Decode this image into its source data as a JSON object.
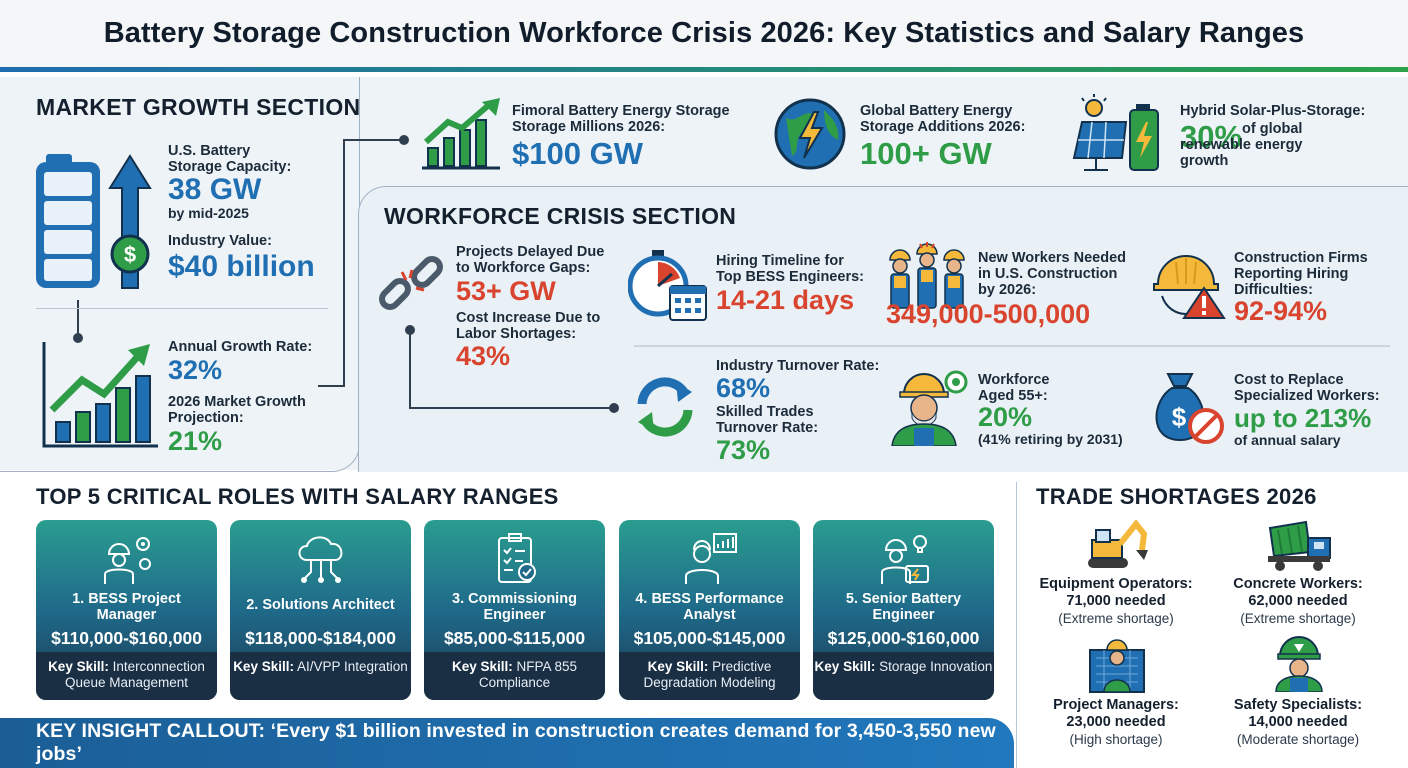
{
  "title": "Battery Storage Construction Workforce Crisis 2026: Key Statistics and Salary Ranges",
  "market": {
    "heading": "MARKET GROWTH SECTION",
    "capacity_label": "U.S. Battery Storage Capacity:",
    "capacity_value": "38 GW",
    "capacity_note": "by mid-2025",
    "value_label": "Industry Value:",
    "value_value": "$40 billion",
    "growth_label": "Annual Growth Rate:",
    "growth_value": "32%",
    "projection_label": "2026 Market Growth Projection:",
    "projection_value": "21%"
  },
  "top_stats": [
    {
      "label": "Fimoral Battery Energy Storage Storage Millions 2026:",
      "value": "$100 GW"
    },
    {
      "label": "Global Battery Energy Storage Additions 2026:",
      "value": "100+ GW"
    },
    {
      "label": "Hybrid Solar-Plus-Storage:",
      "value": "30%",
      "suffix": "of global renewable energy growth"
    }
  ],
  "crisis": {
    "heading": "WORKFORCE CRISIS SECTION",
    "delayed_label": "Projects Delayed Due to Workforce Gaps:",
    "delayed_value": "53+ GW",
    "cost_label": "Cost Increase Due to Labor Shortages:",
    "cost_value": "43%",
    "hiring_label": "Hiring Timeline for Top BESS Engineers:",
    "hiring_value": "14-21 days",
    "workers_label": "New Workers Needed in U.S. Construction by 2026:",
    "workers_value": "349,000-500,000",
    "firms_label": "Construction Firms Reporting Hiring Difficulties:",
    "firms_value": "92-94%",
    "turnover_label": "Industry Turnover Rate:",
    "turnover_value": "68%",
    "skilled_label": "Skilled Trades Turnover Rate:",
    "skilled_value": "73%",
    "aged_label": "Workforce Aged 55+:",
    "aged_value": "20%",
    "aged_note": "(41% retiring by 2031)",
    "replace_label": "Cost to Replace Specialized Workers:",
    "replace_value": "up to 213%",
    "replace_note": "of annual salary"
  },
  "roles": {
    "heading": "TOP 5 CRITICAL ROLES WITH SALARY RANGES",
    "skill_prefix": "Key Skill:",
    "items": [
      {
        "name": "1. BESS Project Manager",
        "salary": "$110,000-$160,000",
        "skill": "Interconnection Queue Management"
      },
      {
        "name": "2. Solutions Architect",
        "salary": "$118,000-$184,000",
        "skill": "AI/VPP Integration"
      },
      {
        "name": "3. Commissioning Engineer",
        "salary": "$85,000-$115,000",
        "skill": "NFPA 855 Compliance"
      },
      {
        "name": "4. BESS Performance Analyst",
        "salary": "$105,000-$145,000",
        "skill": "Predictive Degradation Modeling"
      },
      {
        "name": "5. Senior Battery Engineer",
        "salary": "$125,000-$160,000",
        "skill": "Storage Innovation"
      }
    ]
  },
  "trades": {
    "heading": "TRADE SHORTAGES 2026",
    "items": [
      {
        "name": "Equipment Operators:",
        "value": "71,000 needed",
        "note": "(Extreme shortage)"
      },
      {
        "name": "Concrete Workers:",
        "value": "62,000 needed",
        "note": "(Extreme shortage)"
      },
      {
        "name": "Project Managers:",
        "value": "23,000 needed",
        "note": "(High shortage)"
      },
      {
        "name": "Safety Specialists:",
        "value": "14,000 needed",
        "note": "(Moderate shortage)"
      }
    ]
  },
  "insight": "KEY INSIGHT CALLOUT: ‘Every $1 billion invested in construction creates demand for 3,450-3,550 new jobs’",
  "colors": {
    "blue": "#1f6fb2",
    "green": "#2f9d47",
    "red": "#d9442e",
    "navy": "#1a2e44"
  }
}
